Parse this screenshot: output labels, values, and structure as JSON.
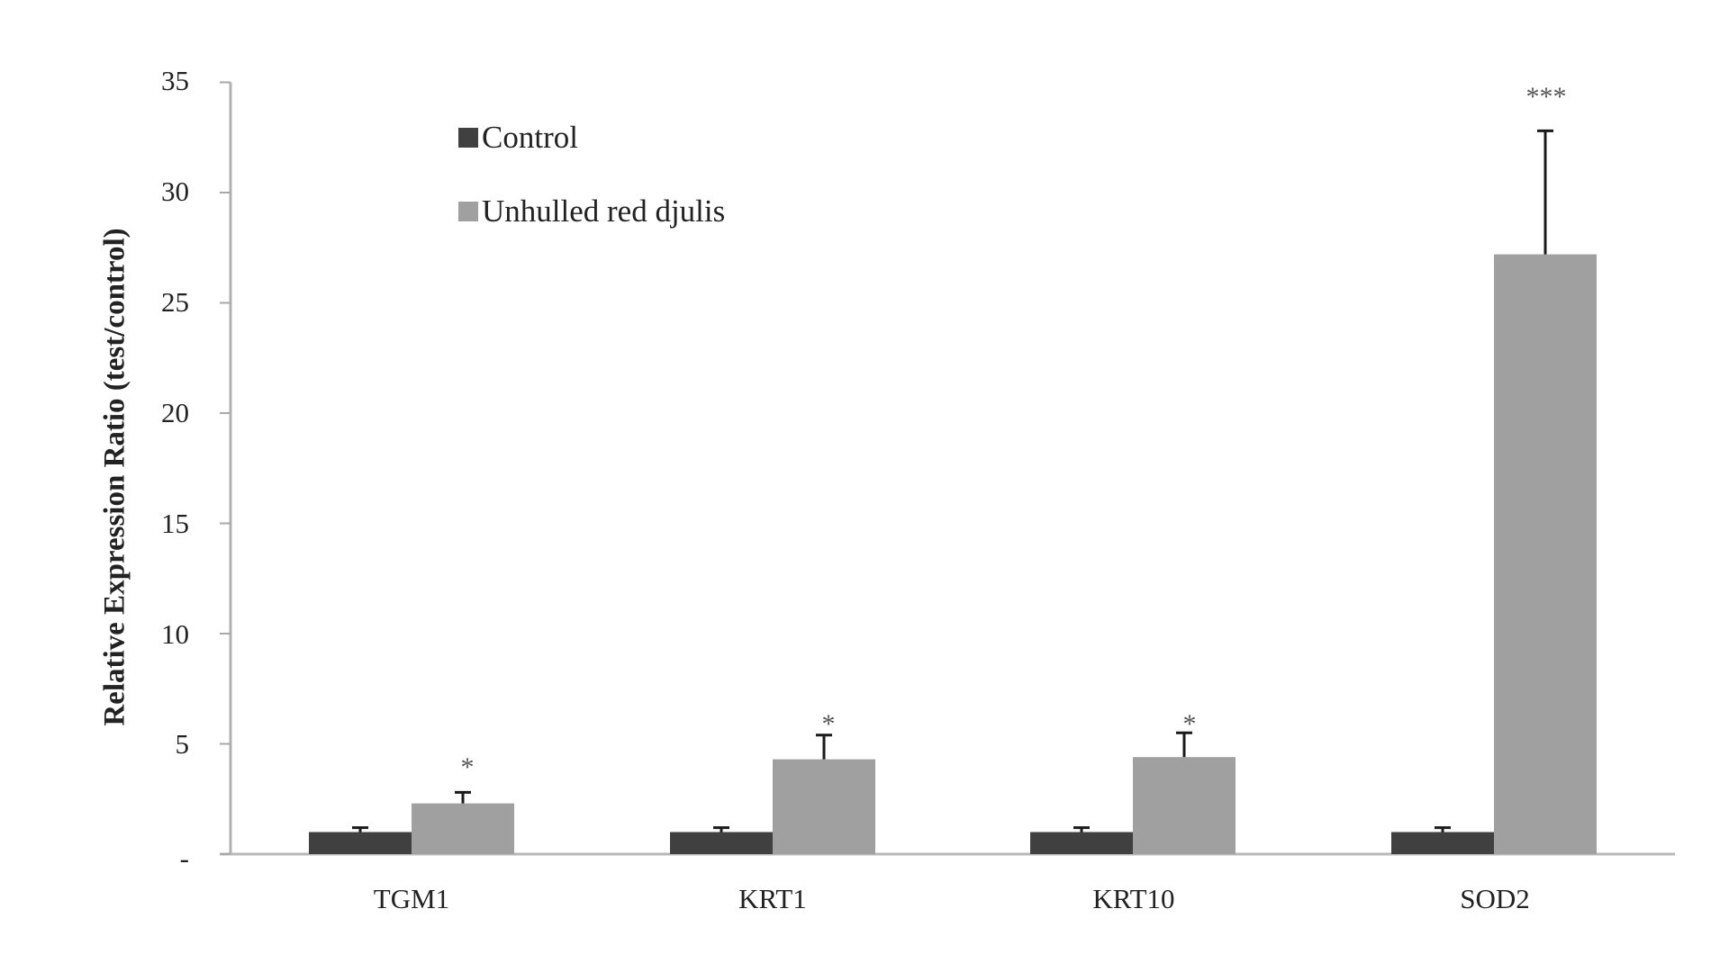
{
  "chart_data": {
    "type": "bar",
    "title": "",
    "xlabel": "",
    "ylabel": "Relative Expression Ratio (test/control)",
    "ylim": [
      0,
      35
    ],
    "yticks": [
      0,
      5,
      10,
      15,
      20,
      25,
      30,
      35
    ],
    "ytick_labels": [
      "-",
      "5",
      "10",
      "15",
      "20",
      "25",
      "30",
      "35"
    ],
    "grid": false,
    "legend_position": "upper-left inside",
    "categories": [
      "TGM1",
      "KRT1",
      "KRT10",
      "SOD2"
    ],
    "series": [
      {
        "name": "Control",
        "color": "#404040",
        "values": [
          1.0,
          1.0,
          1.0,
          1.0
        ],
        "error": [
          0.2,
          0.2,
          0.2,
          0.2
        ]
      },
      {
        "name": "Unhulled red djulis",
        "color": "#a0a0a0",
        "values": [
          2.3,
          4.3,
          4.4,
          27.2
        ],
        "error": [
          0.5,
          1.1,
          1.1,
          5.6
        ]
      }
    ],
    "annotations": [
      "*",
      "*",
      "*",
      "***"
    ]
  },
  "legend": {
    "items": [
      {
        "label": "Control",
        "color": "#404040"
      },
      {
        "label": "Unhulled red djulis",
        "color": "#a0a0a0"
      }
    ]
  },
  "axis": {
    "ylabel": "Relative Expression Ratio (test/control)",
    "ytick_labels": [
      "-",
      "5",
      "10",
      "15",
      "20",
      "25",
      "30",
      "35"
    ],
    "categories": [
      "TGM1",
      "KRT1",
      "KRT10",
      "SOD2"
    ],
    "significance": [
      "*",
      "*",
      "*",
      "***"
    ]
  }
}
